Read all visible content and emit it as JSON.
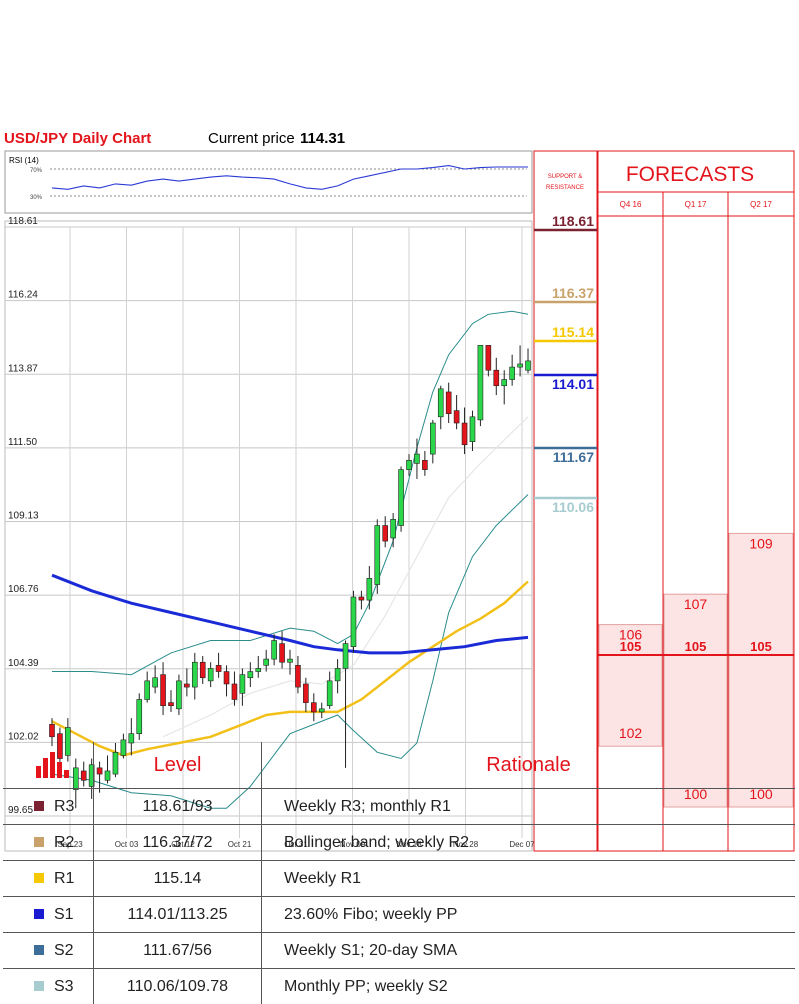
{
  "header": {
    "title": "USD/JPY Daily Chart",
    "price_prefix": "Current price",
    "price": "114.31"
  },
  "rsi": {
    "label": "RSI (14)",
    "upper": "70%",
    "lower": "30%"
  },
  "panel": {
    "sr_title_1": "SUPPORT &",
    "sr_title_2": "RESISTANCE",
    "forecast_title": "FORECASTS"
  },
  "colors": {
    "red": "#e3141b",
    "green": "#2bd74a",
    "sma200": "#1a2ad6",
    "sma55": "#f2c019",
    "bollinger": "#2a8c8c",
    "r3": "#7a2232",
    "r2": "#c8a26a",
    "r1": "#f5c800",
    "s1": "#1a1ad0",
    "s2": "#3d6e9a",
    "s3": "#a6cccf",
    "forecast_fill": "#fde4e4"
  },
  "chart_data": {
    "type": "candlestick",
    "title": "USD/JPY Daily Chart",
    "ylim": [
      99.65,
      118.61
    ],
    "y_ticks": [
      "118.61",
      "116.24",
      "113.87",
      "111.50",
      "109.13",
      "106.76",
      "104.39",
      "102.02",
      "99.65"
    ],
    "x_ticks": [
      "Sep 23",
      "Oct 03",
      "Oct 12",
      "Oct 21",
      "Oct 31",
      "Nov 09",
      "Nov 18",
      "Nov 28",
      "Dec 07"
    ],
    "candles": [
      [
        102.6,
        102.2,
        102.8,
        101.9
      ],
      [
        102.3,
        101.5,
        102.5,
        101.3
      ],
      [
        101.6,
        102.5,
        102.8,
        101.4
      ],
      [
        100.5,
        101.2,
        101.5,
        99.9
      ],
      [
        101.1,
        100.8,
        101.4,
        100.6
      ],
      [
        100.6,
        101.3,
        101.5,
        100.2
      ],
      [
        101.2,
        101.0,
        101.4,
        100.4
      ],
      [
        100.8,
        101.1,
        101.6,
        100.7
      ],
      [
        101.0,
        101.7,
        102.0,
        100.9
      ],
      [
        101.6,
        102.1,
        102.3,
        101.5
      ],
      [
        102.0,
        102.3,
        102.8,
        101.6
      ],
      [
        102.3,
        103.4,
        103.6,
        102.1
      ],
      [
        103.4,
        104.0,
        104.3,
        103.3
      ],
      [
        103.8,
        104.1,
        104.5,
        103.6
      ],
      [
        104.2,
        103.2,
        104.6,
        102.9
      ],
      [
        103.3,
        103.2,
        103.7,
        103.0
      ],
      [
        103.1,
        104.0,
        104.2,
        102.9
      ],
      [
        103.9,
        103.8,
        104.4,
        103.5
      ],
      [
        103.8,
        104.6,
        104.9,
        103.4
      ],
      [
        104.6,
        104.1,
        104.8,
        103.9
      ],
      [
        104.0,
        104.4,
        104.6,
        103.8
      ],
      [
        104.5,
        104.3,
        104.9,
        104.1
      ],
      [
        104.3,
        103.9,
        104.5,
        103.5
      ],
      [
        103.9,
        103.4,
        104.3,
        103.2
      ],
      [
        103.6,
        104.2,
        104.4,
        103.2
      ],
      [
        104.1,
        104.3,
        104.6,
        103.8
      ],
      [
        104.3,
        104.4,
        104.8,
        104.1
      ],
      [
        104.5,
        104.7,
        105.0,
        104.3
      ],
      [
        104.7,
        105.3,
        105.5,
        104.5
      ],
      [
        105.2,
        104.6,
        105.6,
        104.4
      ],
      [
        104.6,
        104.7,
        105.0,
        104.2
      ],
      [
        104.5,
        103.8,
        104.8,
        103.6
      ],
      [
        103.9,
        103.3,
        104.1,
        103.0
      ],
      [
        103.3,
        103.0,
        103.6,
        102.7
      ],
      [
        103.0,
        103.1,
        103.3,
        102.8
      ],
      [
        103.2,
        104.0,
        104.3,
        103.1
      ],
      [
        104.0,
        104.4,
        104.7,
        103.6
      ],
      [
        104.4,
        105.2,
        105.3,
        101.2
      ],
      [
        105.1,
        106.7,
        106.9,
        104.9
      ],
      [
        106.7,
        106.6,
        106.9,
        106.3
      ],
      [
        106.6,
        107.3,
        107.7,
        106.3
      ],
      [
        107.1,
        109.0,
        109.2,
        106.8
      ],
      [
        109.0,
        108.5,
        109.3,
        108.3
      ],
      [
        108.6,
        109.2,
        109.4,
        108.3
      ],
      [
        109.0,
        110.8,
        110.9,
        108.8
      ],
      [
        110.8,
        111.1,
        111.3,
        110.6
      ],
      [
        111.0,
        111.3,
        111.8,
        110.5
      ],
      [
        111.1,
        110.8,
        111.4,
        110.6
      ],
      [
        111.3,
        112.3,
        112.4,
        111.0
      ],
      [
        112.5,
        113.4,
        113.5,
        112.1
      ],
      [
        113.3,
        112.6,
        113.6,
        112.3
      ],
      [
        112.7,
        112.3,
        113.2,
        112.1
      ],
      [
        112.3,
        111.6,
        112.8,
        111.3
      ],
      [
        111.7,
        112.5,
        112.7,
        111.4
      ],
      [
        112.4,
        114.8,
        114.8,
        112.2
      ],
      [
        114.8,
        114.0,
        114.8,
        113.8
      ],
      [
        114.0,
        113.5,
        114.4,
        113.2
      ],
      [
        113.5,
        113.7,
        114.0,
        112.9
      ],
      [
        113.7,
        114.1,
        114.5,
        113.5
      ],
      [
        114.1,
        114.2,
        114.8,
        113.8
      ],
      [
        114.0,
        114.3,
        114.7,
        113.9
      ]
    ],
    "bb_upper": [
      [
        0,
        104.3
      ],
      [
        5,
        104.3
      ],
      [
        10,
        104.2
      ],
      [
        15,
        104.9
      ],
      [
        20,
        105.3
      ],
      [
        25,
        105.3
      ],
      [
        30,
        105.7
      ],
      [
        33,
        105.6
      ],
      [
        36,
        105.2
      ],
      [
        38,
        105.5
      ],
      [
        40,
        106.5
      ],
      [
        43,
        108.5
      ],
      [
        46,
        111.5
      ],
      [
        48,
        113.3
      ],
      [
        50,
        114.5
      ],
      [
        53,
        115.5
      ],
      [
        55,
        115.8
      ],
      [
        58,
        115.9
      ],
      [
        60,
        115.8
      ]
    ],
    "bb_lower": [
      [
        0,
        101.0
      ],
      [
        5,
        100.8
      ],
      [
        10,
        100.4
      ],
      [
        15,
        100.3
      ],
      [
        20,
        99.9
      ],
      [
        22,
        99.9
      ],
      [
        25,
        100.6
      ],
      [
        30,
        102.3
      ],
      [
        33,
        102.6
      ],
      [
        36,
        102.9
      ],
      [
        38,
        102.4
      ],
      [
        41,
        101.7
      ],
      [
        44,
        101.5
      ],
      [
        46,
        102.0
      ],
      [
        48,
        104.0
      ],
      [
        50,
        106.2
      ],
      [
        53,
        108.0
      ],
      [
        56,
        109.0
      ],
      [
        60,
        110.0
      ]
    ],
    "sma20": [
      [
        14,
        102.2
      ],
      [
        20,
        102.9
      ],
      [
        25,
        103.6
      ],
      [
        30,
        104.0
      ],
      [
        34,
        103.9
      ],
      [
        38,
        104.5
      ],
      [
        42,
        106.1
      ],
      [
        46,
        108.0
      ],
      [
        50,
        109.9
      ],
      [
        54,
        111.0
      ],
      [
        58,
        112.0
      ],
      [
        60,
        112.5
      ]
    ],
    "sma55": [
      [
        0,
        102.7
      ],
      [
        3,
        102.3
      ],
      [
        6,
        101.9
      ],
      [
        9,
        101.6
      ],
      [
        12,
        101.8
      ],
      [
        16,
        102.0
      ],
      [
        20,
        102.2
      ],
      [
        24,
        102.6
      ],
      [
        27,
        102.9
      ],
      [
        30,
        103.0
      ],
      [
        33,
        103.0
      ],
      [
        36,
        103.0
      ],
      [
        39,
        103.4
      ],
      [
        42,
        104.0
      ],
      [
        45,
        104.6
      ],
      [
        48,
        105.1
      ],
      [
        51,
        105.6
      ],
      [
        54,
        106.0
      ],
      [
        57,
        106.5
      ],
      [
        60,
        107.2
      ]
    ],
    "sma200": [
      [
        0,
        107.4
      ],
      [
        5,
        106.9
      ],
      [
        10,
        106.5
      ],
      [
        15,
        106.2
      ],
      [
        20,
        105.9
      ],
      [
        25,
        105.6
      ],
      [
        30,
        105.3
      ],
      [
        33,
        105.1
      ],
      [
        36,
        105.0
      ],
      [
        40,
        104.9
      ],
      [
        44,
        104.9
      ],
      [
        48,
        105.0
      ],
      [
        52,
        105.1
      ],
      [
        56,
        105.3
      ],
      [
        60,
        105.4
      ]
    ],
    "rsi_values": [
      [
        0,
        42
      ],
      [
        2,
        40
      ],
      [
        4,
        45
      ],
      [
        6,
        42
      ],
      [
        8,
        48
      ],
      [
        10,
        46
      ],
      [
        12,
        52
      ],
      [
        14,
        55
      ],
      [
        16,
        52
      ],
      [
        18,
        55
      ],
      [
        20,
        58
      ],
      [
        22,
        60
      ],
      [
        24,
        58
      ],
      [
        26,
        57
      ],
      [
        28,
        55
      ],
      [
        30,
        48
      ],
      [
        32,
        42
      ],
      [
        34,
        40
      ],
      [
        36,
        45
      ],
      [
        38,
        55
      ],
      [
        40,
        60
      ],
      [
        42,
        65
      ],
      [
        44,
        70
      ],
      [
        46,
        70
      ],
      [
        48,
        72
      ],
      [
        50,
        75
      ],
      [
        52,
        70
      ],
      [
        54,
        72
      ],
      [
        56,
        73
      ],
      [
        58,
        73
      ],
      [
        60,
        73
      ]
    ]
  },
  "levels": [
    {
      "code": "R3",
      "value": "118.61",
      "table_value": "118.61/93",
      "rationale": "Weekly R3; monthly R1",
      "color": "#7a2232"
    },
    {
      "code": "R2",
      "value": "116.37",
      "table_value": "116.37/72",
      "rationale": "Bollinger band; weekly R2",
      "color": "#c8a26a"
    },
    {
      "code": "R1",
      "value": "115.14",
      "table_value": "115.14",
      "rationale": "Weekly R1",
      "color": "#f5c800"
    },
    {
      "code": "S1",
      "value": "114.01",
      "table_value": "114.01/113.25",
      "rationale": "23.60% Fibo; weekly PP",
      "color": "#1a1ad0"
    },
    {
      "code": "S2",
      "value": "111.67",
      "table_value": "111.67/56",
      "rationale": "Weekly S1; 20-day SMA",
      "color": "#3d6e9a"
    },
    {
      "code": "S3",
      "value": "110.06",
      "table_value": "110.06/109.78",
      "rationale": "Monthly PP; weekly S2",
      "color": "#a6cccf"
    }
  ],
  "forecasts": [
    {
      "label": "Q4 16",
      "high": "106",
      "mid": "105",
      "low": "102"
    },
    {
      "label": "Q1 17",
      "high": "107",
      "mid": "105",
      "low": "100"
    },
    {
      "label": "Q2 17",
      "high": "109",
      "mid": "105",
      "low": "100"
    }
  ],
  "table": {
    "level_header": "Level",
    "rationale_header": "Rationale"
  }
}
